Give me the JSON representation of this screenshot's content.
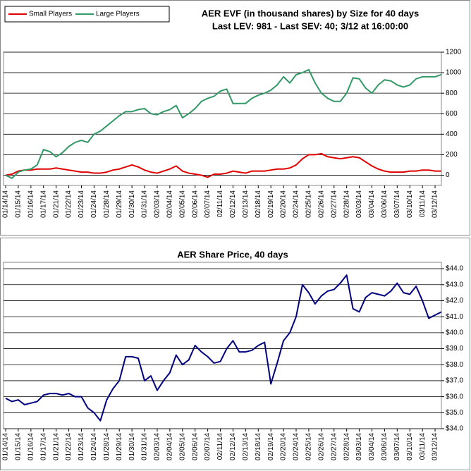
{
  "chart_data": [
    {
      "type": "line",
      "title": "AER EVF (in thousand shares) by Size for 40 days",
      "subtitle": "Last LEV: 981 - Last SEV: 40; 3/12 at 16:00:00",
      "categories": [
        "01/14/14",
        null,
        "01/15/14",
        null,
        "01/16/14",
        null,
        "01/17/14",
        null,
        "01/21/14",
        null,
        "01/22/14",
        null,
        "01/23/14",
        null,
        "01/24/14",
        null,
        "01/28/14",
        null,
        "01/29/14",
        null,
        "01/30/14",
        null,
        "01/31/14",
        null,
        "02/03/14",
        null,
        "02/04/14",
        null,
        "02/05/14",
        null,
        "02/06/14",
        null,
        "02/07/14",
        null,
        "02/11/14",
        null,
        "02/12/14",
        null,
        "02/13/14",
        null,
        "02/18/14",
        null,
        "02/19/14",
        null,
        "02/20/14",
        null,
        "02/24/14",
        null,
        "02/25/14",
        null,
        "02/26/14",
        null,
        "02/27/14",
        null,
        "02/28/14",
        null,
        "03/03/14",
        null,
        "03/04/14",
        null,
        "03/06/14",
        null,
        "03/07/14",
        null,
        "03/10/14",
        null,
        "03/11/14",
        null,
        "03/12/14",
        null
      ],
      "series": [
        {
          "name": "Small Players",
          "color": "#e00000",
          "values": [
            0,
            10,
            40,
            50,
            50,
            60,
            60,
            60,
            70,
            60,
            50,
            40,
            30,
            30,
            20,
            20,
            30,
            50,
            60,
            80,
            100,
            80,
            50,
            30,
            20,
            40,
            60,
            90,
            40,
            20,
            10,
            0,
            -20,
            10,
            10,
            20,
            40,
            30,
            20,
            40,
            40,
            40,
            50,
            60,
            60,
            70,
            100,
            160,
            200,
            200,
            210,
            180,
            170,
            160,
            170,
            180,
            170,
            130,
            90,
            60,
            40,
            30,
            30,
            30,
            40,
            40,
            50,
            50,
            40,
            40
          ]
        },
        {
          "name": "Large Players",
          "color": "#339966",
          "values": [
            0,
            -30,
            30,
            50,
            60,
            100,
            250,
            230,
            180,
            220,
            280,
            320,
            340,
            320,
            400,
            430,
            480,
            530,
            580,
            620,
            620,
            640,
            650,
            600,
            590,
            620,
            640,
            680,
            560,
            600,
            650,
            720,
            750,
            770,
            820,
            840,
            700,
            700,
            700,
            750,
            780,
            800,
            830,
            880,
            960,
            900,
            980,
            1000,
            1030,
            900,
            800,
            750,
            720,
            720,
            800,
            950,
            940,
            850,
            800,
            880,
            930,
            920,
            880,
            860,
            880,
            940,
            960,
            960,
            960,
            981
          ]
        }
      ],
      "ylim": [
        -100,
        1200
      ],
      "yticks": [
        0,
        200,
        400,
        600,
        800,
        1000,
        1200
      ],
      "grid": true,
      "legend": "upper left"
    },
    {
      "type": "line",
      "title": "AER Share Price, 40 days",
      "categories": [
        "01/14/14",
        null,
        "01/15/14",
        null,
        "01/16/14",
        null,
        "01/17/14",
        null,
        "01/21/14",
        null,
        "01/22/14",
        null,
        "01/23/14",
        null,
        "01/24/14",
        null,
        "01/28/14",
        null,
        "01/29/14",
        null,
        "01/30/14",
        null,
        "01/31/14",
        null,
        "02/03/14",
        null,
        "02/04/14",
        null,
        "02/05/14",
        null,
        "02/06/14",
        null,
        "02/07/14",
        null,
        "02/11/14",
        null,
        "02/12/14",
        null,
        "02/13/14",
        null,
        "02/18/14",
        null,
        "02/19/14",
        null,
        "02/20/14",
        null,
        "02/24/14",
        null,
        "02/25/14",
        null,
        "02/26/14",
        null,
        "02/27/14",
        null,
        "02/28/14",
        null,
        "03/03/14",
        null,
        "03/04/14",
        null,
        "03/06/14",
        null,
        "03/07/14",
        null,
        "03/10/14",
        null,
        "03/11/14",
        null,
        "03/12/14",
        null
      ],
      "values": [
        35.9,
        35.7,
        35.8,
        35.5,
        35.6,
        35.7,
        36.1,
        36.2,
        36.2,
        36.1,
        36.2,
        36.0,
        36.0,
        35.3,
        35.0,
        34.5,
        35.8,
        36.5,
        37.0,
        38.5,
        38.5,
        38.4,
        37.0,
        37.3,
        36.4,
        37.0,
        37.5,
        38.6,
        38.0,
        38.3,
        39.2,
        38.8,
        38.5,
        38.1,
        38.2,
        39.0,
        39.5,
        38.8,
        38.8,
        38.9,
        39.2,
        39.4,
        36.8,
        38.1,
        39.5,
        40.0,
        41.0,
        43.0,
        42.5,
        41.8,
        42.3,
        42.6,
        42.7,
        43.1,
        43.6,
        41.5,
        41.3,
        42.2,
        42.5,
        42.4,
        42.3,
        42.6,
        43.1,
        42.5,
        42.4,
        42.9,
        42.0,
        40.9,
        41.1,
        41.3
      ],
      "color": "#00007f",
      "ylim": [
        34,
        44.4
      ],
      "yticks": [
        {
          "value": 34,
          "label": "$34.0"
        },
        {
          "value": 35,
          "label": "$35.0"
        },
        {
          "value": 36,
          "label": "$36.0"
        },
        {
          "value": 37,
          "label": "$37.0"
        },
        {
          "value": 38,
          "label": "$38.0"
        },
        {
          "value": 39,
          "label": "$39.0"
        },
        {
          "value": 40,
          "label": "$40.0"
        },
        {
          "value": 41,
          "label": "$41.0"
        },
        {
          "value": 42,
          "label": "$42.0"
        },
        {
          "value": 43,
          "label": "$43.0"
        },
        {
          "value": 44,
          "label": "$44.0"
        }
      ],
      "grid": true
    }
  ]
}
